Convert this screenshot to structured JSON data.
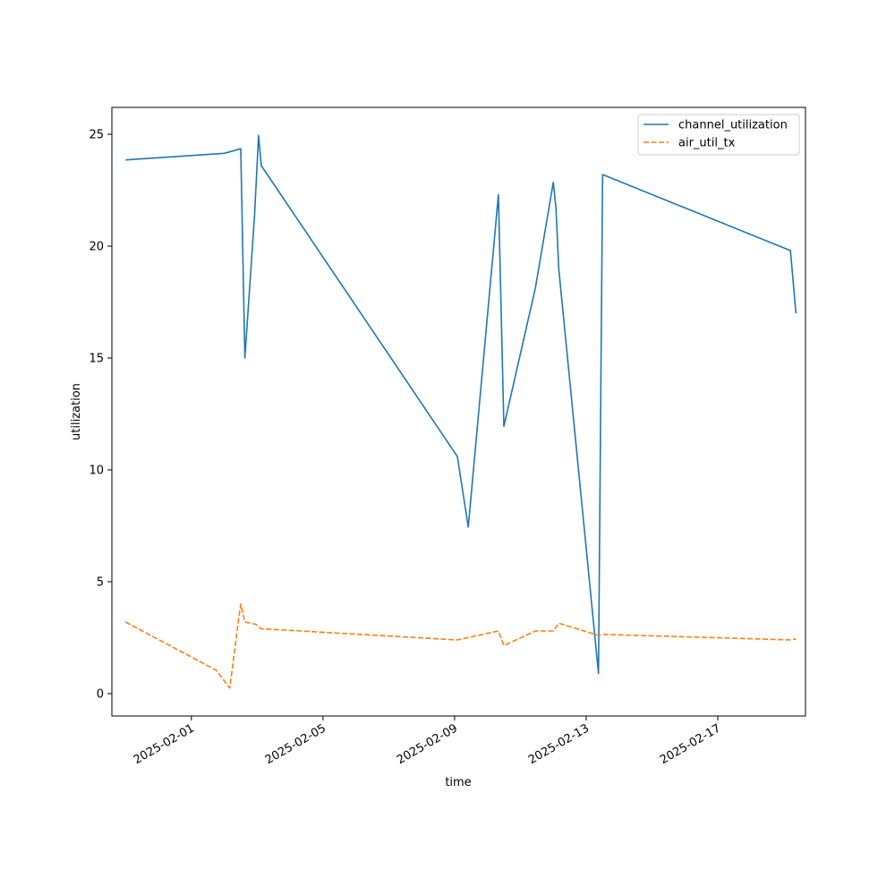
{
  "chart_data": {
    "type": "line",
    "xlabel": "time",
    "ylabel": "utilization",
    "x_axis_type": "date",
    "xlim": [
      "2025-01-29T14:00",
      "2025-02-19T16:00"
    ],
    "ylim": [
      -1.0,
      26.2
    ],
    "x_ticks": [
      "2025-02-01",
      "2025-02-05",
      "2025-02-09",
      "2025-02-13",
      "2025-02-17"
    ],
    "y_ticks": [
      0,
      5,
      10,
      15,
      20,
      25
    ],
    "legend_position": "top-right",
    "grid": false,
    "series": [
      {
        "name": "channel_utilization",
        "color": "#1f77b4",
        "line_style": "solid",
        "points": [
          {
            "x": "2025-01-30T00:00",
            "y": 23.85
          },
          {
            "x": "2025-02-02T00:00",
            "y": 24.15
          },
          {
            "x": "2025-02-02T12:00",
            "y": 24.35
          },
          {
            "x": "2025-02-02T15:00",
            "y": 15.0
          },
          {
            "x": "2025-02-02T22:00",
            "y": 21.3
          },
          {
            "x": "2025-02-03T01:00",
            "y": 24.95
          },
          {
            "x": "2025-02-03T03:00",
            "y": 23.6
          },
          {
            "x": "2025-02-09T02:00",
            "y": 10.6
          },
          {
            "x": "2025-02-09T10:00",
            "y": 7.45
          },
          {
            "x": "2025-02-10T08:00",
            "y": 22.3
          },
          {
            "x": "2025-02-10T12:00",
            "y": 11.95
          },
          {
            "x": "2025-02-11T11:00",
            "y": 18.15
          },
          {
            "x": "2025-02-12T00:00",
            "y": 22.85
          },
          {
            "x": "2025-02-12T02:00",
            "y": 21.7
          },
          {
            "x": "2025-02-12T04:00",
            "y": 19.0
          },
          {
            "x": "2025-02-13T09:00",
            "y": 0.9
          },
          {
            "x": "2025-02-13T12:00",
            "y": 23.2
          },
          {
            "x": "2025-02-19T05:00",
            "y": 19.8
          },
          {
            "x": "2025-02-19T09:00",
            "y": 17.0
          }
        ]
      },
      {
        "name": "air_util_tx",
        "color": "#ff7f0e",
        "line_style": "dashed",
        "points": [
          {
            "x": "2025-01-30T00:00",
            "y": 3.2
          },
          {
            "x": "2025-02-01T18:00",
            "y": 1.05
          },
          {
            "x": "2025-02-02T04:00",
            "y": 0.25
          },
          {
            "x": "2025-02-02T10:00",
            "y": 3.1
          },
          {
            "x": "2025-02-02T12:00",
            "y": 4.0
          },
          {
            "x": "2025-02-02T15:00",
            "y": 3.2
          },
          {
            "x": "2025-02-02T23:00",
            "y": 3.1
          },
          {
            "x": "2025-02-03T03:00",
            "y": 2.9
          },
          {
            "x": "2025-02-09T02:00",
            "y": 2.4
          },
          {
            "x": "2025-02-10T08:00",
            "y": 2.8
          },
          {
            "x": "2025-02-10T12:00",
            "y": 2.15
          },
          {
            "x": "2025-02-11T11:00",
            "y": 2.8
          },
          {
            "x": "2025-02-12T00:00",
            "y": 2.8
          },
          {
            "x": "2025-02-12T04:00",
            "y": 3.15
          },
          {
            "x": "2025-02-13T09:00",
            "y": 2.6
          },
          {
            "x": "2025-02-13T12:00",
            "y": 2.65
          },
          {
            "x": "2025-02-19T05:00",
            "y": 2.4
          },
          {
            "x": "2025-02-19T09:00",
            "y": 2.45
          }
        ]
      }
    ]
  }
}
